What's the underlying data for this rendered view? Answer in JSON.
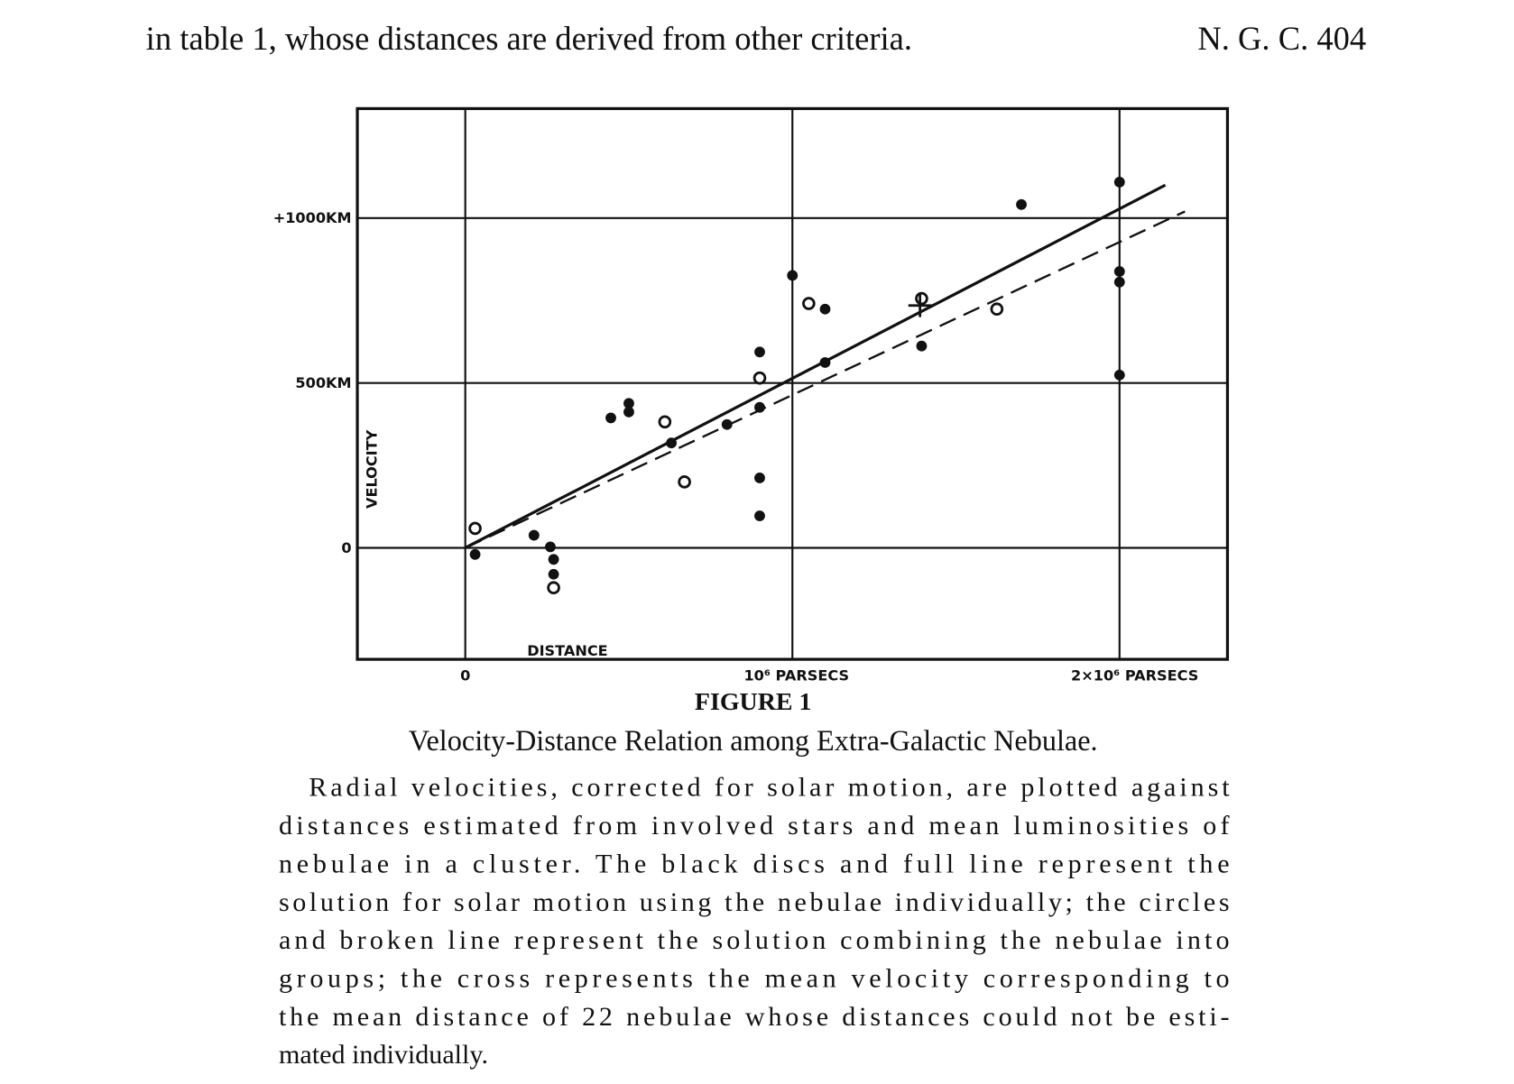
{
  "header_line": "in table 1, whose distances are derived from other criteria.",
  "header_ref": "N. G. C. 404",
  "chart_data": {
    "type": "scatter",
    "xlabel": "DISTANCE",
    "ylabel": "VELOCITY",
    "xlim": [
      -330000,
      2330000
    ],
    "xticks": [
      0,
      {
        "value": 1000000,
        "label": "10⁶ PARSECS"
      },
      {
        "value": 2000000,
        "label": "2×10⁶ PARSECS"
      }
    ],
    "ylim": [
      -338,
      1332
    ],
    "yticks": [
      0,
      {
        "value": 500,
        "label": "500KM"
      },
      {
        "value": 1000,
        "label": "+1000KM"
      }
    ],
    "grid": true,
    "color": "#111111",
    "series": [
      {
        "marker": "disc",
        "x": [
          30000,
          210000,
          260000,
          270000,
          270000,
          445000,
          500000,
          500000,
          630000,
          800000,
          900000,
          900000,
          900000,
          900000,
          1000000,
          1100000,
          1100000,
          1395000,
          1700000,
          2000000,
          2000000,
          2000000,
          2000000
        ],
        "y": [
          -20,
          38,
          3,
          -35,
          -80,
          394,
          438,
          412,
          318,
          374,
          594,
          426,
          212,
          97,
          826,
          724,
          562,
          612,
          1041,
          1109,
          838,
          806,
          524
        ]
      },
      {
        "marker": "circle",
        "x": [
          30000,
          270000,
          610000,
          670000,
          900000,
          1050000,
          1395000,
          1625000
        ],
        "y": [
          59,
          -121,
          382,
          200,
          515,
          741,
          756,
          724
        ]
      },
      {
        "marker": "cross",
        "x": [
          1390000
        ],
        "y": [
          735
        ]
      }
    ],
    "lines": [
      {
        "style": "solid",
        "x": [
          0,
          2140000
        ],
        "y": [
          0,
          1100
        ]
      },
      {
        "style": "dashed",
        "x": [
          0,
          2200000
        ],
        "y": [
          0,
          1020
        ]
      }
    ]
  },
  "figure_label": "FIGURE 1",
  "caption_title": "Velocity-Distance Relation among Extra-Galactic Nebulae.",
  "caption_lines": [
    "Radial velocities, corrected for solar motion, are plotted against",
    "distances estimated from involved stars and mean luminosities of",
    "nebulae in a cluster.  The black discs and full line represent the",
    "solution for solar motion using the nebulae individually; the circles",
    "and broken line represent the solution combining the nebulae into",
    "groups; the cross represents the mean velocity corresponding to",
    "the mean distance of 22 nebulae whose distances could not be esti-",
    "mated individually."
  ]
}
